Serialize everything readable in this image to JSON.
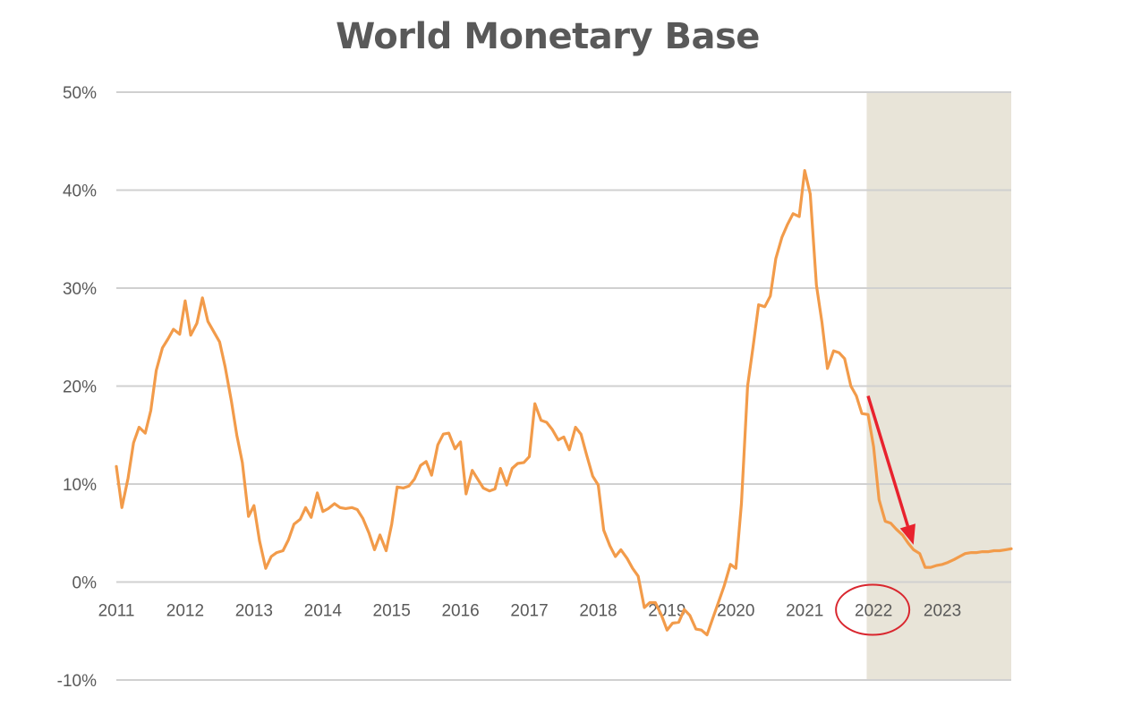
{
  "chart_data": {
    "type": "line",
    "title": "World Monetary Base",
    "xlabel": "",
    "ylabel": "",
    "x_ticks": [
      "2011",
      "2012",
      "2013",
      "2014",
      "2015",
      "2016",
      "2017",
      "2018",
      "2019",
      "2020",
      "2021",
      "2022",
      "2023"
    ],
    "x_range": [
      2011.0,
      2024.0
    ],
    "ylim": [
      -10,
      50
    ],
    "y_ticks": [
      -10,
      0,
      10,
      20,
      30,
      40,
      50
    ],
    "y_tick_labels": [
      "-10%",
      "0%",
      "10%",
      "20%",
      "30%",
      "40%",
      "50%"
    ],
    "grid": "horizontal",
    "legend": "none",
    "shaded_region": {
      "x_start": 2021.9,
      "x_end": 2024.0,
      "color": "#e8e4d8"
    },
    "annotations": [
      {
        "type": "arrow",
        "from": [
          2021.92,
          19.0
        ],
        "to": [
          2022.58,
          3.8
        ],
        "color": "#e8222e"
      },
      {
        "type": "ellipse",
        "label_ref": "2022",
        "color": "#d9262e"
      }
    ],
    "series": [
      {
        "color": "#f29b4a",
        "points": [
          [
            2011.0,
            11.8
          ],
          [
            2011.08,
            7.6
          ],
          [
            2011.17,
            10.6
          ],
          [
            2011.25,
            14.2
          ],
          [
            2011.33,
            15.8
          ],
          [
            2011.42,
            15.2
          ],
          [
            2011.5,
            17.5
          ],
          [
            2011.58,
            21.6
          ],
          [
            2011.67,
            23.9
          ],
          [
            2011.75,
            24.8
          ],
          [
            2011.83,
            25.8
          ],
          [
            2011.92,
            25.3
          ],
          [
            2012.0,
            28.7
          ],
          [
            2012.08,
            25.2
          ],
          [
            2012.17,
            26.4
          ],
          [
            2012.25,
            29.0
          ],
          [
            2012.33,
            26.6
          ],
          [
            2012.42,
            25.5
          ],
          [
            2012.5,
            24.5
          ],
          [
            2012.58,
            22.0
          ],
          [
            2012.67,
            18.5
          ],
          [
            2012.75,
            15.0
          ],
          [
            2012.83,
            12.2
          ],
          [
            2012.92,
            6.7
          ],
          [
            2013.0,
            7.8
          ],
          [
            2013.08,
            4.2
          ],
          [
            2013.17,
            1.4
          ],
          [
            2013.25,
            2.6
          ],
          [
            2013.33,
            3.0
          ],
          [
            2013.42,
            3.2
          ],
          [
            2013.5,
            4.3
          ],
          [
            2013.58,
            5.9
          ],
          [
            2013.67,
            6.4
          ],
          [
            2013.75,
            7.6
          ],
          [
            2013.83,
            6.6
          ],
          [
            2013.92,
            9.1
          ],
          [
            2014.0,
            7.2
          ],
          [
            2014.08,
            7.5
          ],
          [
            2014.17,
            8.0
          ],
          [
            2014.25,
            7.6
          ],
          [
            2014.33,
            7.5
          ],
          [
            2014.42,
            7.6
          ],
          [
            2014.5,
            7.4
          ],
          [
            2014.58,
            6.5
          ],
          [
            2014.67,
            5.0
          ],
          [
            2014.75,
            3.3
          ],
          [
            2014.83,
            4.8
          ],
          [
            2014.92,
            3.2
          ],
          [
            2015.0,
            5.9
          ],
          [
            2015.08,
            9.7
          ],
          [
            2015.17,
            9.6
          ],
          [
            2015.25,
            9.8
          ],
          [
            2015.33,
            10.5
          ],
          [
            2015.42,
            11.9
          ],
          [
            2015.5,
            12.3
          ],
          [
            2015.58,
            10.9
          ],
          [
            2015.67,
            14.0
          ],
          [
            2015.75,
            15.1
          ],
          [
            2015.83,
            15.2
          ],
          [
            2015.92,
            13.6
          ],
          [
            2016.0,
            14.3
          ],
          [
            2016.08,
            9.0
          ],
          [
            2016.17,
            11.4
          ],
          [
            2016.25,
            10.5
          ],
          [
            2016.33,
            9.6
          ],
          [
            2016.42,
            9.3
          ],
          [
            2016.5,
            9.5
          ],
          [
            2016.58,
            11.6
          ],
          [
            2016.67,
            9.9
          ],
          [
            2016.75,
            11.6
          ],
          [
            2016.83,
            12.1
          ],
          [
            2016.92,
            12.2
          ],
          [
            2017.0,
            12.8
          ],
          [
            2017.08,
            18.2
          ],
          [
            2017.17,
            16.5
          ],
          [
            2017.25,
            16.3
          ],
          [
            2017.33,
            15.6
          ],
          [
            2017.42,
            14.5
          ],
          [
            2017.5,
            14.8
          ],
          [
            2017.58,
            13.5
          ],
          [
            2017.67,
            15.8
          ],
          [
            2017.75,
            15.1
          ],
          [
            2017.83,
            13.0
          ],
          [
            2017.92,
            10.8
          ],
          [
            2018.0,
            9.9
          ],
          [
            2018.08,
            5.3
          ],
          [
            2018.17,
            3.7
          ],
          [
            2018.25,
            2.6
          ],
          [
            2018.33,
            3.3
          ],
          [
            2018.42,
            2.4
          ],
          [
            2018.5,
            1.4
          ],
          [
            2018.58,
            0.6
          ],
          [
            2018.67,
            -2.6
          ],
          [
            2018.75,
            -2.1
          ],
          [
            2018.83,
            -2.1
          ],
          [
            2018.92,
            -3.4
          ],
          [
            2019.0,
            -4.9
          ],
          [
            2019.08,
            -4.2
          ],
          [
            2019.17,
            -4.1
          ],
          [
            2019.25,
            -2.8
          ],
          [
            2019.33,
            -3.4
          ],
          [
            2019.42,
            -4.8
          ],
          [
            2019.5,
            -4.9
          ],
          [
            2019.58,
            -5.4
          ],
          [
            2019.67,
            -3.6
          ],
          [
            2019.75,
            -2.0
          ],
          [
            2019.83,
            -0.4
          ],
          [
            2019.92,
            1.8
          ],
          [
            2020.0,
            1.4
          ],
          [
            2020.08,
            8.0
          ],
          [
            2020.17,
            20.0
          ],
          [
            2020.25,
            24.0
          ],
          [
            2020.33,
            28.3
          ],
          [
            2020.42,
            28.1
          ],
          [
            2020.5,
            29.2
          ],
          [
            2020.58,
            33.0
          ],
          [
            2020.67,
            35.2
          ],
          [
            2020.75,
            36.5
          ],
          [
            2020.83,
            37.6
          ],
          [
            2020.92,
            37.3
          ],
          [
            2021.0,
            42.0
          ],
          [
            2021.08,
            39.6
          ],
          [
            2021.17,
            30.3
          ],
          [
            2021.25,
            26.5
          ],
          [
            2021.33,
            21.8
          ],
          [
            2021.42,
            23.6
          ],
          [
            2021.5,
            23.4
          ],
          [
            2021.58,
            22.8
          ],
          [
            2021.67,
            20.0
          ],
          [
            2021.75,
            19.0
          ],
          [
            2021.83,
            17.2
          ],
          [
            2021.92,
            17.1
          ],
          [
            2022.0,
            13.8
          ],
          [
            2022.08,
            8.4
          ],
          [
            2022.17,
            6.2
          ],
          [
            2022.25,
            6.0
          ],
          [
            2022.33,
            5.4
          ],
          [
            2022.42,
            4.8
          ],
          [
            2022.5,
            4.0
          ],
          [
            2022.58,
            3.3
          ],
          [
            2022.67,
            2.9
          ],
          [
            2022.75,
            1.5
          ],
          [
            2022.83,
            1.5
          ],
          [
            2022.92,
            1.7
          ],
          [
            2023.0,
            1.8
          ],
          [
            2023.08,
            2.0
          ],
          [
            2023.17,
            2.3
          ],
          [
            2023.25,
            2.6
          ],
          [
            2023.33,
            2.9
          ],
          [
            2023.42,
            3.0
          ],
          [
            2023.5,
            3.0
          ],
          [
            2023.58,
            3.1
          ],
          [
            2023.67,
            3.1
          ],
          [
            2023.75,
            3.2
          ],
          [
            2023.83,
            3.2
          ],
          [
            2023.92,
            3.3
          ],
          [
            2024.0,
            3.4
          ]
        ]
      }
    ]
  }
}
